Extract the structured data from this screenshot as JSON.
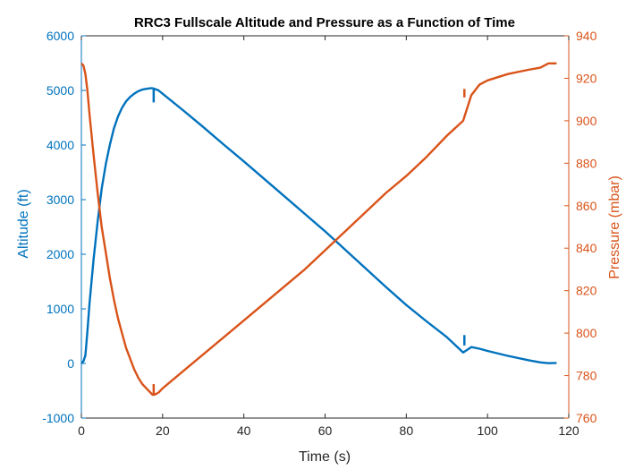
{
  "chart_data": {
    "type": "line",
    "title": "RRC3 Fullscale Altitude and Pressure as a Function of Time",
    "xlabel": "Time (s)",
    "ylabel_left": "Altitude (ft)",
    "ylabel_right": "Pressure (mbar)",
    "xlim": [
      0,
      120
    ],
    "ylim_left": [
      -1000,
      6000
    ],
    "ylim_right": [
      760,
      940
    ],
    "x_ticks": [
      0,
      20,
      40,
      60,
      80,
      100,
      120
    ],
    "y_left_ticks": [
      -1000,
      0,
      1000,
      2000,
      3000,
      4000,
      5000,
      6000
    ],
    "y_right_ticks": [
      760,
      780,
      800,
      820,
      840,
      860,
      880,
      900,
      920,
      940
    ],
    "grid": false,
    "colors": {
      "altitude": "#0072BD",
      "pressure": "#D95319"
    },
    "series": [
      {
        "axis": "left",
        "x": [
          0,
          0.5,
          1,
          1.5,
          2,
          3,
          4,
          5,
          6,
          7,
          8,
          9,
          10,
          11,
          12,
          13,
          14,
          15,
          16,
          17,
          17.5,
          18,
          19,
          20,
          25,
          30,
          35,
          40,
          45,
          50,
          55,
          60,
          65,
          70,
          75,
          80,
          85,
          90,
          94,
          96,
          98,
          100,
          105,
          110,
          113,
          115,
          117
        ],
        "values": [
          0,
          40,
          150,
          600,
          1100,
          1900,
          2600,
          3200,
          3650,
          4000,
          4300,
          4520,
          4680,
          4800,
          4880,
          4940,
          4985,
          5015,
          5030,
          5040,
          5040,
          5030,
          5000,
          4940,
          4640,
          4330,
          4010,
          3700,
          3380,
          3060,
          2740,
          2420,
          2080,
          1740,
          1400,
          1070,
          770,
          480,
          200,
          300,
          270,
          230,
          140,
          60,
          20,
          5,
          10
        ]
      },
      {
        "axis": "right",
        "x": [
          0,
          0.5,
          1,
          1.5,
          2,
          3,
          4,
          5,
          6,
          7,
          8,
          9,
          10,
          11,
          12,
          13,
          14,
          15,
          16,
          17,
          17.5,
          18,
          19,
          20,
          25,
          30,
          35,
          40,
          45,
          50,
          55,
          60,
          65,
          70,
          75,
          80,
          85,
          90,
          94,
          96,
          98,
          100,
          105,
          110,
          113,
          115,
          117
        ],
        "values": [
          927,
          926,
          922,
          914,
          903,
          884,
          866,
          850,
          838,
          826,
          816,
          807,
          800,
          793,
          788,
          783,
          779,
          776,
          774,
          772,
          771,
          771,
          772,
          774,
          782,
          790,
          798,
          806,
          814,
          822,
          830,
          839,
          848,
          857,
          866,
          874,
          883,
          893,
          900,
          912,
          917,
          919,
          922,
          924,
          925,
          927,
          927
        ]
      }
    ]
  }
}
